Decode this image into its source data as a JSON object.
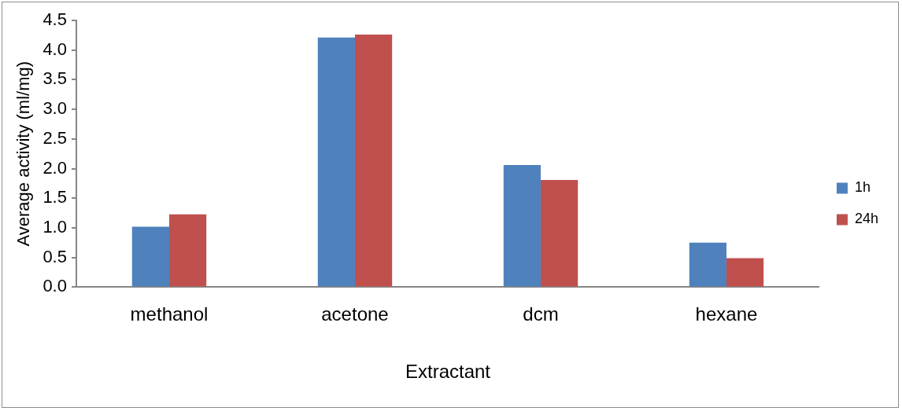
{
  "chart_data": {
    "type": "bar",
    "xlabel": "Extractant",
    "ylabel": "Average activity (ml/mg)",
    "categories": [
      "methanol",
      "acetone",
      "dcm",
      "hexane"
    ],
    "series": [
      {
        "name": "1h",
        "color": "#4f81bd",
        "values": [
          1.02,
          4.21,
          2.06,
          0.75
        ]
      },
      {
        "name": "24h",
        "color": "#c0504d",
        "values": [
          1.23,
          4.26,
          1.81,
          0.49
        ]
      }
    ],
    "ylim": [
      0,
      4.5
    ],
    "yticks": [
      {
        "value": 0,
        "label": "0.0"
      },
      {
        "value": 0.5,
        "label": "0.5"
      },
      {
        "value": 1,
        "label": "1.0"
      },
      {
        "value": 1.5,
        "label": "1.5"
      },
      {
        "value": 2,
        "label": "2.0"
      },
      {
        "value": 2.5,
        "label": "2.5"
      },
      {
        "value": 3,
        "label": "3.0"
      },
      {
        "value": 3.5,
        "label": "3.5"
      },
      {
        "value": 4,
        "label": "4.0"
      },
      {
        "value": 4.5,
        "label": "4.5"
      }
    ],
    "grid": false,
    "legend": "right"
  }
}
